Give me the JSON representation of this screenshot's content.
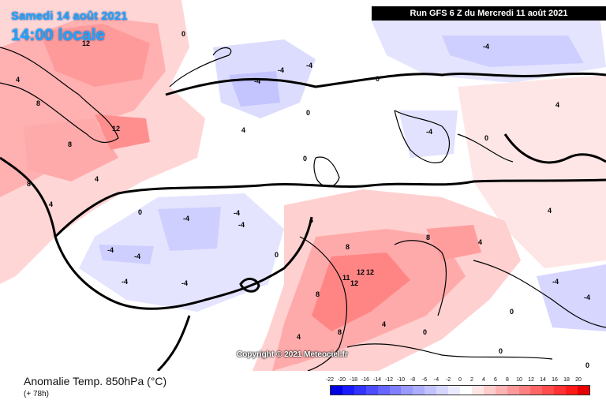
{
  "header": {
    "date": "Samedi 14 août 2021",
    "time": "14:00 locale",
    "run": "Run GFS 6 Z du Mercredi 11 août 2021"
  },
  "copyright": "Copyright © 2021 Meteociel.fr",
  "footer": {
    "title": "Anomalie Temp. 850hPa (°C)",
    "subtitle": "(+ 78h)"
  },
  "legend": {
    "labels": [
      "-22",
      "-20",
      "-18",
      "-16",
      "-14",
      "-12",
      "-10",
      "-8",
      "-6",
      "-4",
      "-2",
      "0",
      "2",
      "4",
      "6",
      "8",
      "10",
      "12",
      "14",
      "16",
      "18",
      "20"
    ],
    "colors": [
      "#0000e0",
      "#1a1aff",
      "#3333ff",
      "#4d4dff",
      "#6666ff",
      "#7f7fff",
      "#9999ff",
      "#adadff",
      "#c2c2ff",
      "#d6d6ff",
      "#ebebff",
      "#ffffff",
      "#ffe6e6",
      "#ffcccc",
      "#ffb3b3",
      "#ff9999",
      "#ff8080",
      "#ff6666",
      "#ff4d4d",
      "#ff3333",
      "#ff1a1a",
      "#e60000"
    ]
  },
  "colors": {
    "ocean_neutral": "#ffffff",
    "warm_light": "#ffd6d6",
    "warm_mid": "#ffaaaa",
    "warm_strong": "#ff7f7f",
    "cool_light": "#dcdcff",
    "cool_mid": "#bcbcff",
    "accent_blue_text": "#1fa5ff"
  },
  "contour_labels": [
    {
      "text": "0"
    },
    {
      "text": "4"
    },
    {
      "text": "8"
    },
    {
      "text": "12"
    },
    {
      "text": "4"
    },
    {
      "text": "8"
    },
    {
      "text": "4"
    },
    {
      "text": "0"
    },
    {
      "text": "-4"
    },
    {
      "text": "-4"
    },
    {
      "text": "-4"
    },
    {
      "text": "0"
    },
    {
      "text": "-4"
    },
    {
      "text": "-4"
    },
    {
      "text": "-4"
    },
    {
      "text": "-4"
    },
    {
      "text": "0"
    },
    {
      "text": "0"
    },
    {
      "text": "-4"
    },
    {
      "text": "-4"
    },
    {
      "text": "-4"
    },
    {
      "text": "-4"
    },
    {
      "text": "-4"
    },
    {
      "text": "0"
    },
    {
      "text": "0"
    },
    {
      "text": "4"
    },
    {
      "text": "8"
    },
    {
      "text": "11"
    },
    {
      "text": "12"
    },
    {
      "text": "12"
    },
    {
      "text": "12"
    },
    {
      "text": "8"
    },
    {
      "text": "8"
    },
    {
      "text": "4"
    },
    {
      "text": "4"
    },
    {
      "text": "0"
    },
    {
      "text": "4"
    },
    {
      "text": "-4"
    },
    {
      "text": "-4"
    },
    {
      "text": "0"
    },
    {
      "text": "4"
    },
    {
      "text": "8"
    },
    {
      "text": "0"
    },
    {
      "text": "0"
    },
    {
      "text": "4"
    },
    {
      "text": "8"
    },
    {
      "text": "12"
    },
    {
      "text": "4"
    }
  ]
}
